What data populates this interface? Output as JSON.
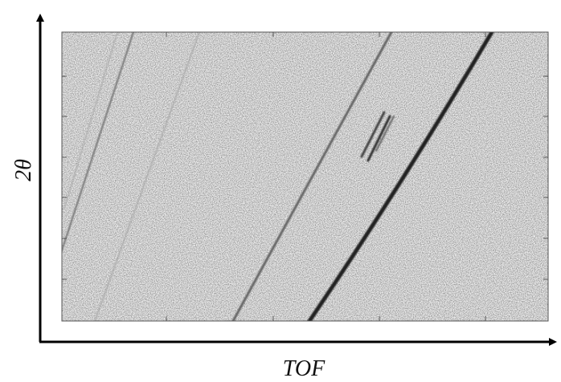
{
  "chart_data": {
    "type": "image",
    "x_label": "TOF",
    "y_label": "2θ"
  }
}
